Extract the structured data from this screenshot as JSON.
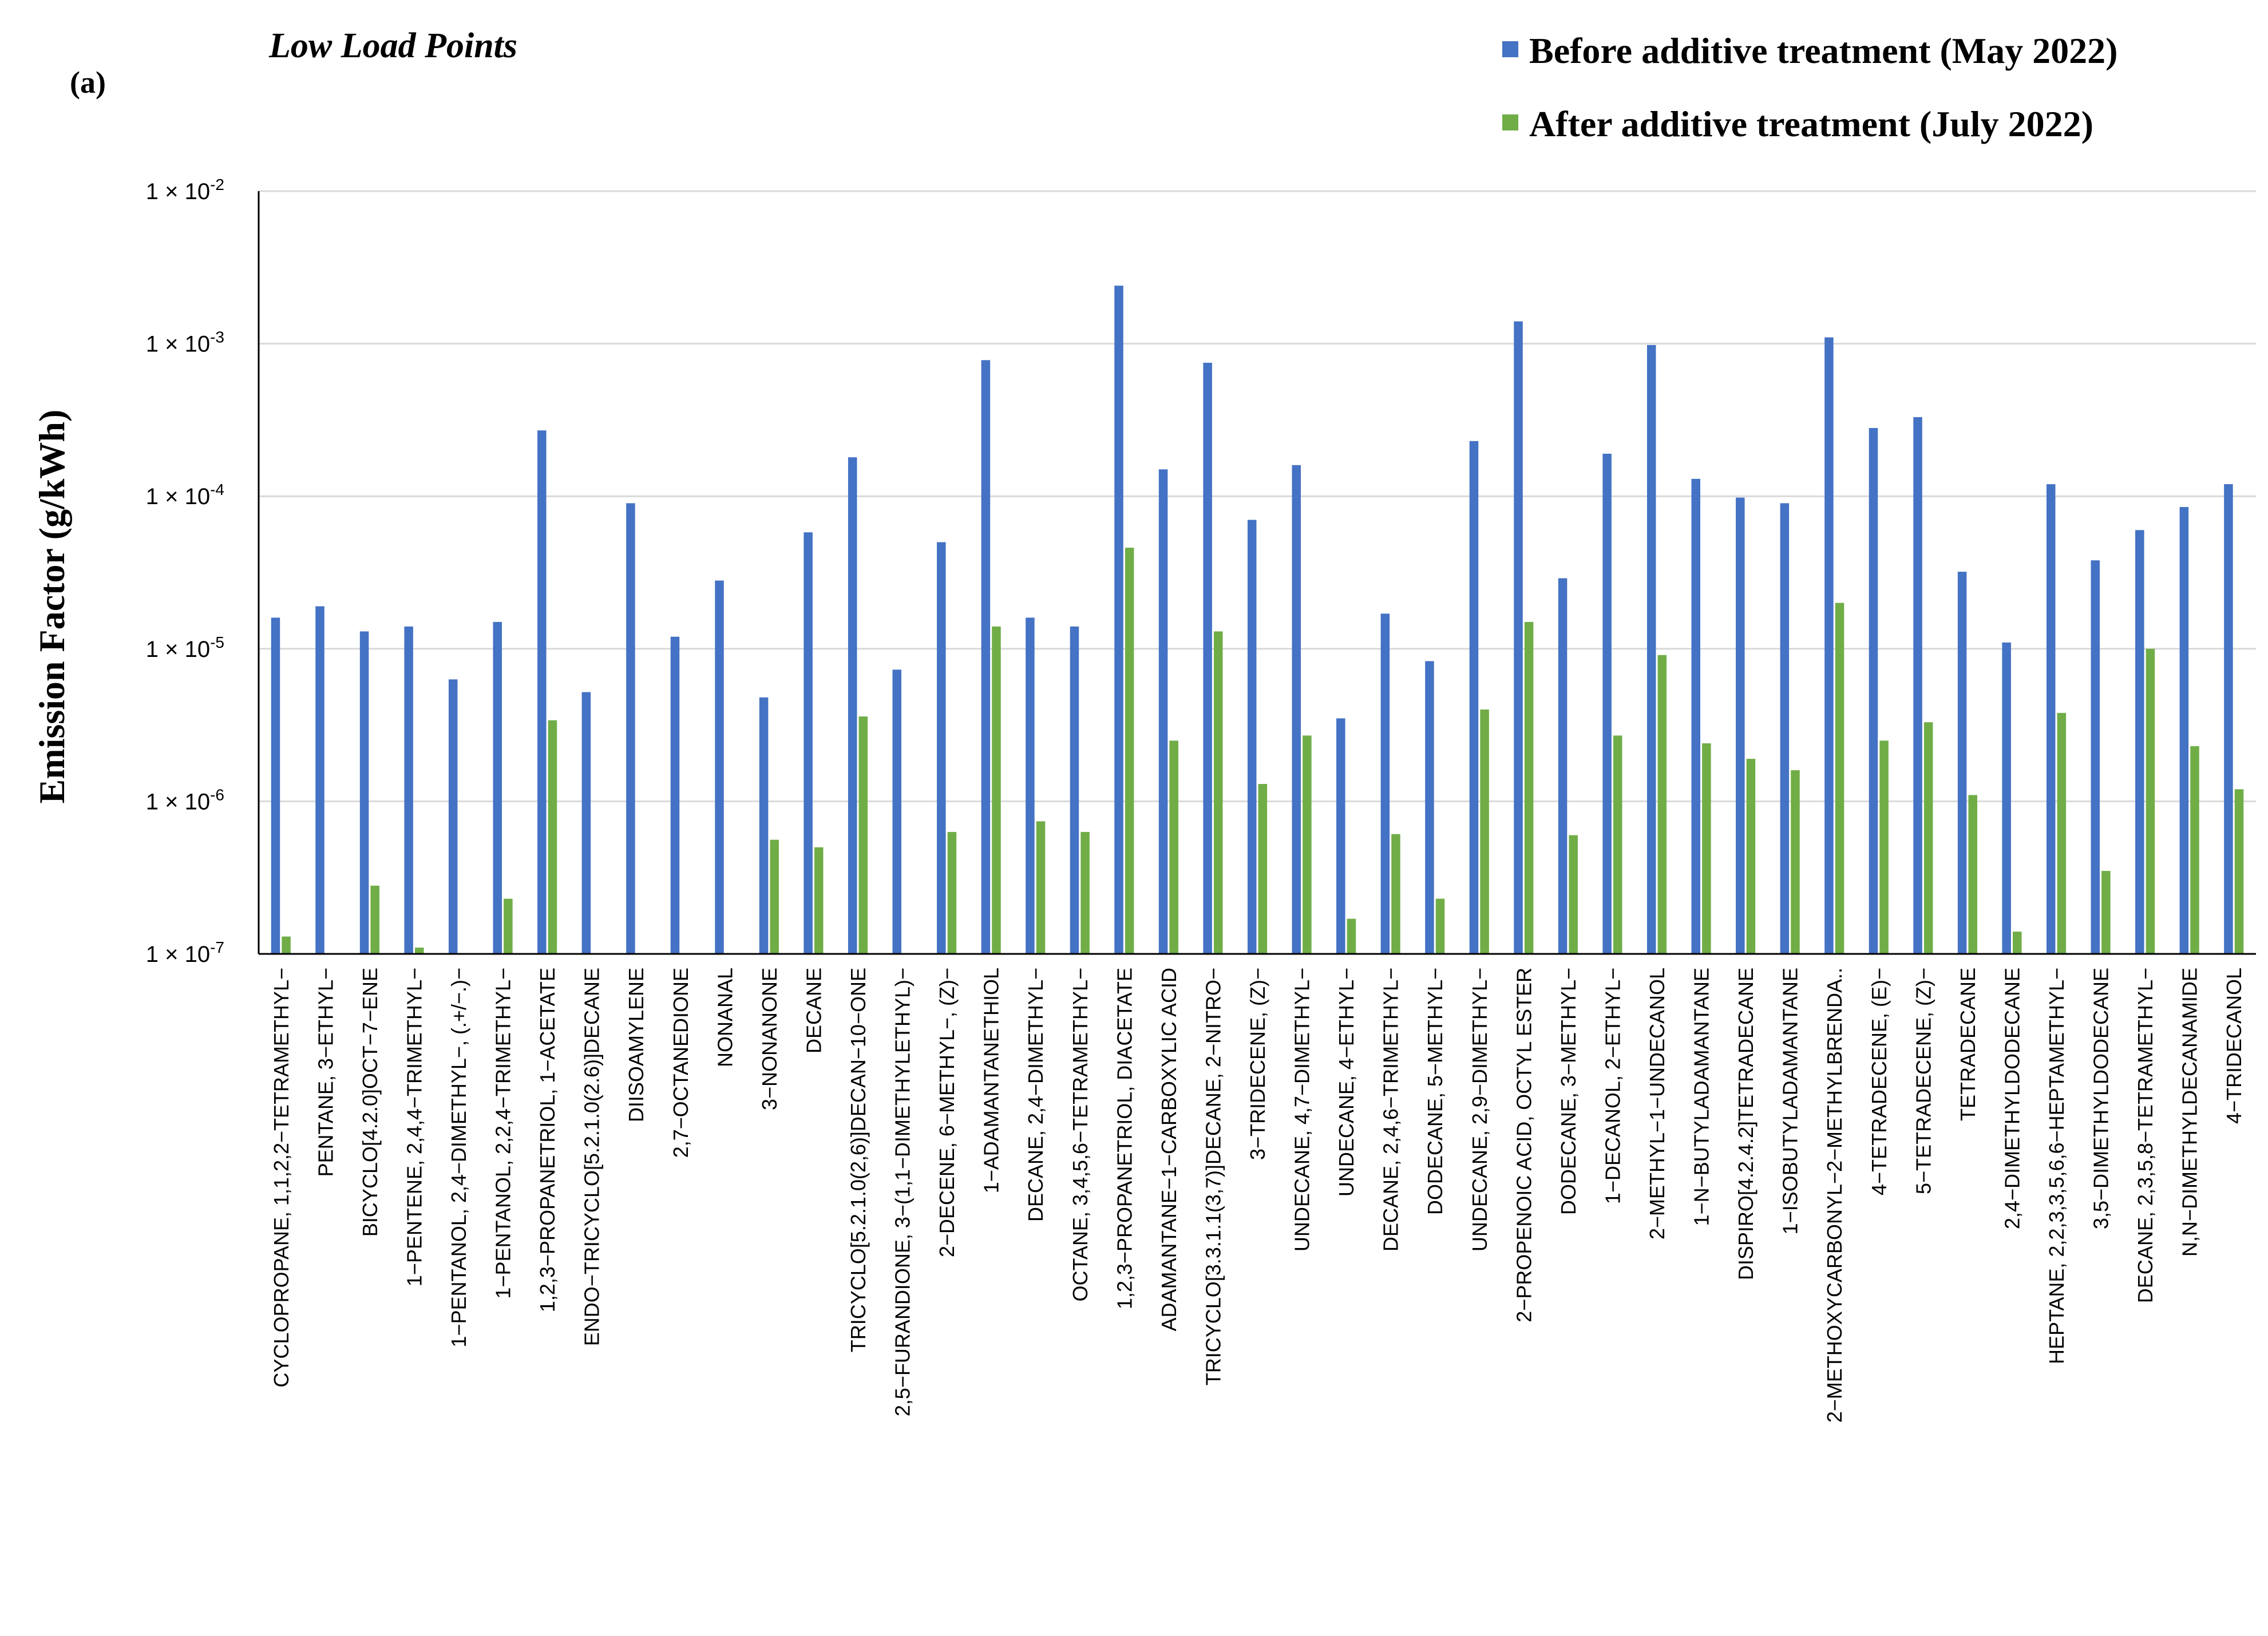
{
  "panel_label": "(a)",
  "chart_data": {
    "type": "bar",
    "title": "Low Load Points",
    "xlabel": "",
    "ylabel": "Emission Factor (g/kWh)",
    "yscale": "log",
    "ylim": [
      1e-07,
      0.01
    ],
    "yticks": [
      {
        "value": 1e-07,
        "base": "1 × 10",
        "exp": "-7"
      },
      {
        "value": 1e-06,
        "base": "1 × 10",
        "exp": "-6"
      },
      {
        "value": 1e-05,
        "base": "1 × 10",
        "exp": "-5"
      },
      {
        "value": 0.0001,
        "base": "1 × 10",
        "exp": "-4"
      },
      {
        "value": 0.001,
        "base": "1 × 10",
        "exp": "-3"
      },
      {
        "value": 0.01,
        "base": "1 × 10",
        "exp": "-2"
      }
    ],
    "grid": true,
    "legend_position": "top-right",
    "colors": {
      "before": "#4472c4",
      "after": "#70ad47",
      "grid": "#d9d9d9"
    },
    "categories": [
      "CYCLOPROPANE, 1,1,2,2−TETRAMETHYL−",
      "PENTANE, 3−ETHYL−",
      "BICYCLO[4.2.0]OCT−7−ENE",
      "1−PENTENE, 2,4,4−TRIMETHYL−",
      "1−PENTANOL, 2,4−DIMETHYL−, (.+/−.)−",
      "1−PENTANOL, 2,2,4−TRIMETHYL−",
      "1,2,3−PROPANETRIOL, 1−ACETATE",
      "ENDO−TRICYCLO[5.2.1.0(2.6)]DECANE",
      "DIISOAMYLENE",
      "2,7−OCTANEDIONE",
      "NONANAL",
      "3−NONANONE",
      "DECANE",
      "TRICYCLO[5.2.1.0(2,6)]DECAN−10−ONE",
      "2,5−FURANDIONE, 3−(1,1−DIMETHYLETHYL)−",
      "2−DECENE, 6−METHYL−, (Z)−",
      "1−ADAMANTANETHIOL",
      "DECANE, 2,4−DIMETHYL−",
      "OCTANE, 3,4,5,6−TETRAMETHYL−",
      "1,2,3−PROPANETRIOL, DIACETATE",
      "ADAMANTANE−1−CARBOXYLIC ACID",
      "TRICYCLO[3.3.1.1(3,7)]DECANE, 2−NITRO−",
      "3−TRIDECENE, (Z)−",
      "UNDECANE, 4,7−DIMETHYL−",
      "UNDECANE, 4−ETHYL−",
      "DECANE, 2,4,6−TRIMETHYL−",
      "DODECANE, 5−METHYL−",
      "UNDECANE, 2,9−DIMETHYL−",
      "2−PROPENOIC ACID, OCTYL ESTER",
      "DODECANE, 3−METHYL−",
      "1−DECANOL, 2−ETHYL−",
      "2−METHYL−1−UNDECANOL",
      "1−N−BUTYLADAMANTANE",
      "DISPIRO[4.2.4.2]TETRADECANE",
      "1−ISOBUTYLADAMANTANE",
      "2−METHOXYCARBONYL−2−METHYLBRENDA..",
      "4−TETRADECENE, (E)−",
      "5−TETRADECENE, (Z)−",
      "TETRADECANE",
      "2,4−DIMETHYLDODECANE",
      "HEPTANE, 2,2,3,3,5,6,6−HEPTAMETHYL−",
      "3,5−DIMETHYLDODECANE",
      "DECANE, 2,3,5,8−TETRAMETHYL−",
      "N,N−DIMETHYLDECANAMIDE",
      "4−TRIDECANOL"
    ],
    "series": [
      {
        "name": "Before additive treatment (May 2022)",
        "key": "before",
        "values": [
          1.6e-05,
          1.9e-05,
          1.3e-05,
          1.4e-05,
          6.3e-06,
          1.5e-05,
          0.00027,
          5.2e-06,
          9e-05,
          1.2e-05,
          2.8e-05,
          4.8e-06,
          5.8e-05,
          0.00018,
          7.3e-06,
          5e-05,
          0.00078,
          1.6e-05,
          1.4e-05,
          0.0024,
          0.00015,
          0.00075,
          7e-05,
          0.00016,
          3.5e-06,
          1.7e-05,
          8.3e-06,
          0.00023,
          0.0014,
          2.9e-05,
          0.00019,
          0.00098,
          0.00013,
          9.8e-05,
          9e-05,
          0.0011,
          0.00028,
          0.00033,
          3.2e-05,
          1.1e-05,
          0.00012,
          3.8e-05,
          6e-05,
          8.5e-05,
          0.00012
        ]
      },
      {
        "name": "After additive treatment (July 2022)",
        "key": "after",
        "values": [
          1.3e-07,
          null,
          2.8e-07,
          1.1e-07,
          null,
          2.3e-07,
          3.4e-06,
          null,
          null,
          null,
          null,
          5.6e-07,
          5e-07,
          3.6e-06,
          null,
          6.3e-07,
          1.4e-05,
          7.4e-07,
          6.3e-07,
          4.6e-05,
          2.5e-06,
          1.3e-05,
          1.3e-06,
          2.7e-06,
          1.7e-07,
          6.1e-07,
          2.3e-07,
          4e-06,
          1.5e-05,
          6e-07,
          2.7e-06,
          9.1e-06,
          2.4e-06,
          1.9e-06,
          1.6e-06,
          2e-05,
          2.5e-06,
          3.3e-06,
          1.1e-06,
          1.4e-07,
          3.8e-06,
          3.5e-07,
          1e-05,
          2.3e-06,
          1.2e-06
        ]
      }
    ]
  }
}
